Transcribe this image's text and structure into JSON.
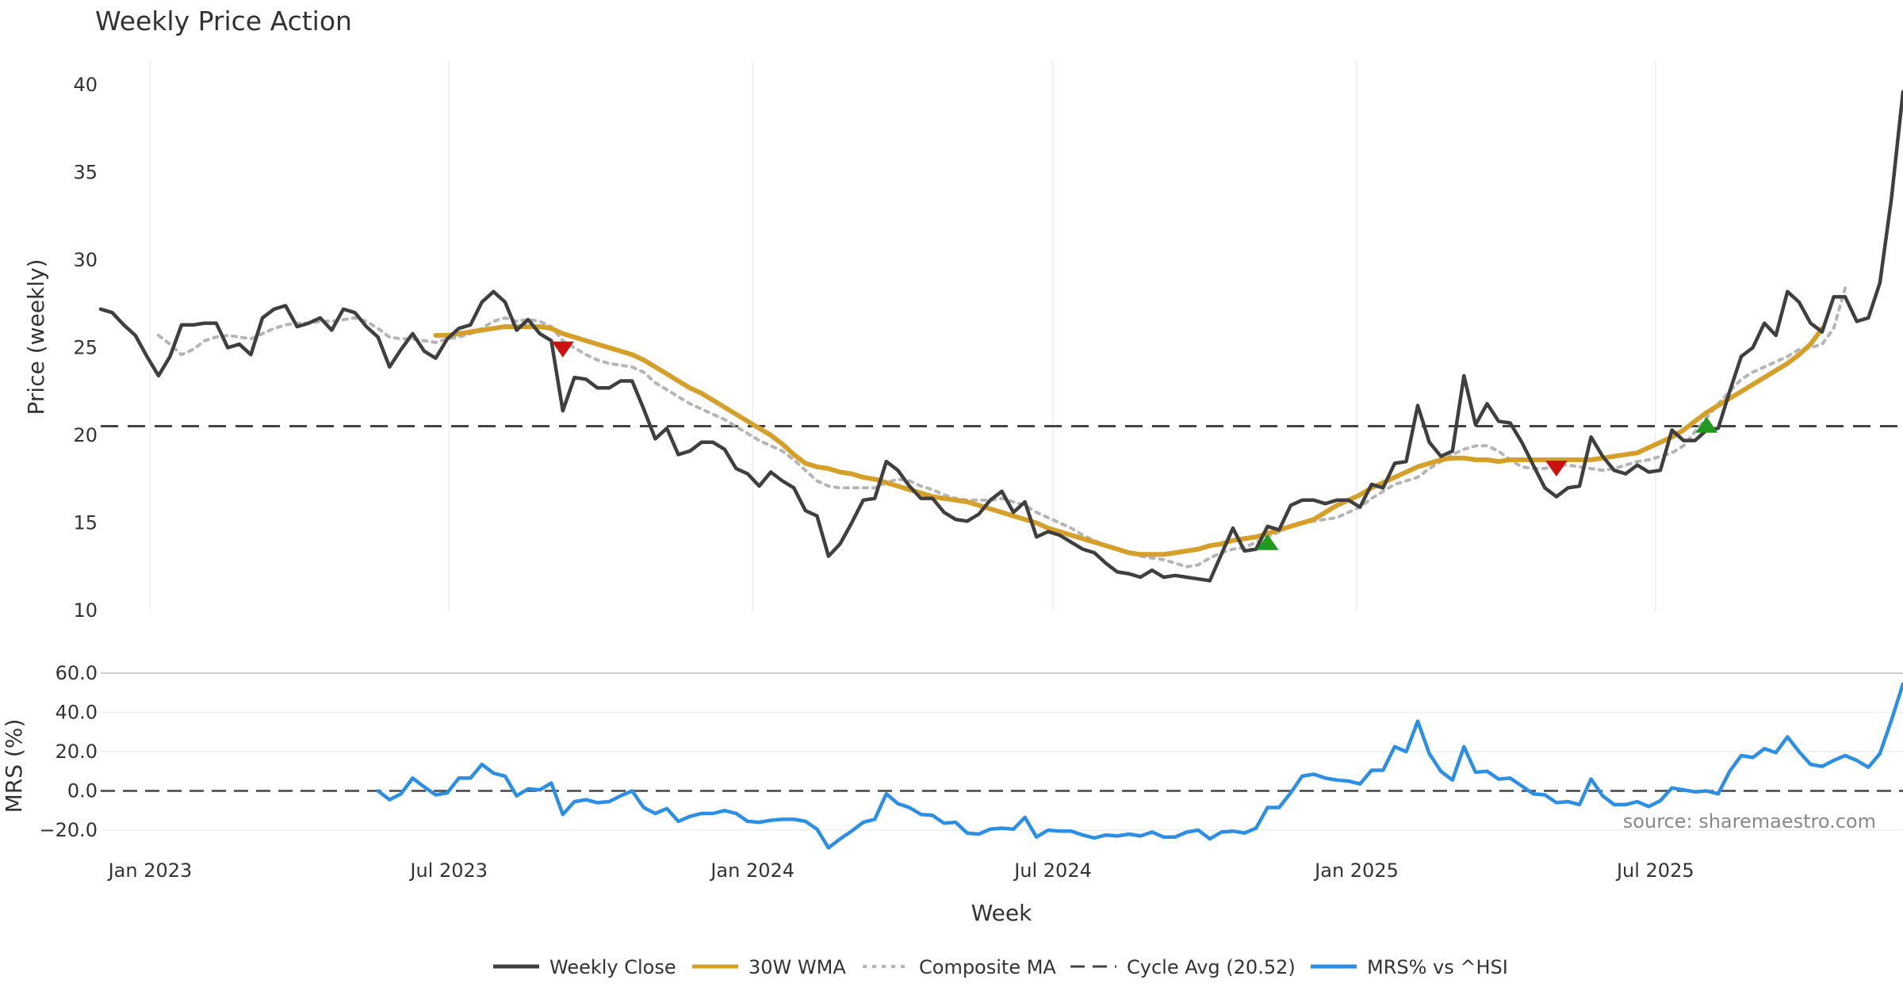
{
  "title": "Weekly Price Action",
  "source": "source: sharemaestro.com",
  "colors": {
    "close": "#3f3f3f",
    "wma": "#d4a02a",
    "composite": "#b5b5b5",
    "cycle": "#444444",
    "mrs": "#2c8fe3",
    "buy": "#1f9a1f",
    "sell": "#cc1111",
    "grid": "#ececec"
  },
  "chart_data": [
    {
      "type": "line",
      "name": "price-panel",
      "ylabel": "Price (weekly)",
      "ylim": [
        10,
        40
      ],
      "yticks": [
        "10",
        "15",
        "20",
        "25",
        "30",
        "35",
        "40"
      ],
      "x_start": "2022-12-02",
      "x_step_days": 7,
      "grid": true,
      "series": [
        {
          "name": "Weekly Close",
          "values": [
            27.2,
            27.0,
            26.3,
            25.7,
            24.5,
            23.4,
            24.5,
            26.3,
            26.3,
            26.4,
            26.4,
            25.0,
            25.2,
            24.6,
            26.7,
            27.2,
            27.4,
            26.2,
            26.4,
            26.7,
            26.0,
            27.2,
            27.0,
            26.2,
            25.6,
            23.9,
            24.9,
            25.8,
            24.8,
            24.4,
            25.5,
            26.1,
            26.3,
            27.6,
            28.2,
            27.6,
            26.0,
            26.6,
            25.8,
            25.4,
            21.4,
            23.3,
            23.2,
            22.7,
            22.7,
            23.1,
            23.1,
            21.5,
            19.8,
            20.4,
            18.9,
            19.1,
            19.6,
            19.6,
            19.2,
            18.1,
            17.8,
            17.1,
            17.9,
            17.4,
            17.0,
            15.7,
            15.4,
            13.1,
            13.8,
            15.0,
            16.3,
            16.4,
            18.5,
            18.0,
            17.1,
            16.4,
            16.4,
            15.6,
            15.2,
            15.1,
            15.5,
            16.3,
            16.8,
            15.6,
            16.2,
            14.2,
            14.5,
            14.3,
            13.9,
            13.5,
            13.3,
            12.7,
            12.2,
            12.1,
            11.9,
            12.3,
            11.9,
            12.0,
            11.9,
            11.8,
            11.7,
            13.2,
            14.7,
            13.4,
            13.5,
            14.8,
            14.6,
            16.0,
            16.3,
            16.3,
            16.1,
            16.3,
            16.3,
            15.9,
            17.2,
            17.0,
            18.4,
            18.5,
            21.7,
            19.6,
            18.8,
            19.1,
            23.4,
            20.6,
            21.8,
            20.8,
            20.7,
            19.6,
            18.3,
            17.0,
            16.5,
            17.0,
            17.1,
            19.9,
            18.8,
            18.0,
            17.8,
            18.3,
            17.9,
            18.0,
            20.3,
            19.7,
            19.7,
            20.3,
            20.4,
            22.5,
            24.5,
            25.0,
            26.4,
            25.7,
            28.2,
            27.6,
            26.4,
            25.9,
            27.9,
            27.9,
            26.5,
            26.7,
            28.7,
            33.5,
            39.6
          ]
        },
        {
          "name": "30W WMA",
          "values": [
            null,
            null,
            null,
            null,
            null,
            null,
            null,
            null,
            null,
            null,
            null,
            null,
            null,
            null,
            null,
            null,
            null,
            null,
            null,
            null,
            null,
            null,
            null,
            null,
            null,
            null,
            null,
            null,
            null,
            25.7,
            25.7,
            25.8,
            25.9,
            26.0,
            26.1,
            26.2,
            26.2,
            26.2,
            26.2,
            26.1,
            25.8,
            25.6,
            25.4,
            25.2,
            25.0,
            24.8,
            24.6,
            24.3,
            23.9,
            23.5,
            23.1,
            22.7,
            22.4,
            22.0,
            21.6,
            21.2,
            20.8,
            20.4,
            20.0,
            19.5,
            18.9,
            18.4,
            18.2,
            18.1,
            17.9,
            17.8,
            17.6,
            17.5,
            17.3,
            17.1,
            16.9,
            16.7,
            16.5,
            16.4,
            16.3,
            16.2,
            16.0,
            15.8,
            15.6,
            15.4,
            15.2,
            15.0,
            14.7,
            14.5,
            14.3,
            14.1,
            13.9,
            13.7,
            13.5,
            13.3,
            13.2,
            13.2,
            13.2,
            13.3,
            13.4,
            13.5,
            13.7,
            13.8,
            14.0,
            14.1,
            14.2,
            14.4,
            14.6,
            14.8,
            15.0,
            15.2,
            15.6,
            16.0,
            16.3,
            16.6,
            17.0,
            17.3,
            17.6,
            17.9,
            18.2,
            18.4,
            18.6,
            18.7,
            18.7,
            18.6,
            18.6,
            18.5,
            18.6,
            18.6,
            18.6,
            18.6,
            18.6,
            18.6,
            18.6,
            18.6,
            18.7,
            18.8,
            18.9,
            19.0,
            19.3,
            19.6,
            19.9,
            20.3,
            20.8,
            21.3,
            21.7,
            22.1,
            22.5,
            22.9,
            23.3,
            23.7,
            24.1,
            24.6,
            25.2,
            26.1
          ]
        },
        {
          "name": "Composite MA",
          "values": [
            null,
            null,
            null,
            null,
            null,
            25.7,
            25.2,
            24.6,
            24.9,
            25.4,
            25.6,
            25.7,
            25.6,
            25.5,
            25.8,
            26.1,
            26.3,
            26.4,
            26.4,
            26.5,
            26.5,
            26.6,
            26.7,
            26.5,
            26.1,
            25.6,
            25.5,
            25.5,
            25.4,
            25.3,
            25.5,
            25.6,
            25.8,
            26.1,
            26.5,
            26.7,
            26.5,
            26.6,
            26.5,
            26.2,
            25.4,
            25.0,
            24.6,
            24.3,
            24.1,
            24.0,
            23.9,
            23.6,
            23.0,
            22.6,
            22.2,
            21.8,
            21.5,
            21.2,
            20.9,
            20.5,
            20.1,
            19.7,
            19.4,
            19.1,
            18.6,
            18.0,
            17.4,
            17.1,
            17.0,
            17.0,
            17.0,
            17.0,
            17.3,
            17.5,
            17.4,
            17.1,
            16.9,
            16.6,
            16.4,
            16.3,
            16.3,
            16.3,
            16.4,
            16.2,
            16.0,
            15.6,
            15.3,
            15.0,
            14.7,
            14.3,
            14.0,
            13.7,
            13.5,
            13.3,
            13.1,
            13.0,
            12.9,
            12.7,
            12.5,
            12.6,
            13.0,
            13.3,
            13.5,
            13.6,
            13.9,
            14.2,
            14.5,
            14.8,
            15.0,
            15.1,
            15.2,
            15.3,
            15.6,
            15.9,
            16.4,
            16.8,
            17.2,
            17.4,
            17.6,
            18.1,
            18.5,
            18.9,
            19.2,
            19.4,
            19.4,
            19.1,
            18.6,
            18.2,
            18.1,
            18.1,
            18.3,
            18.3,
            18.2,
            18.1,
            18.0,
            18.1,
            18.3,
            18.5,
            18.6,
            18.8,
            19.0,
            19.4,
            20.2,
            21.0,
            21.8,
            22.5,
            23.2,
            23.6,
            23.9,
            24.2,
            24.5,
            24.9,
            25.0,
            25.2,
            26.1,
            28.4
          ]
        }
      ],
      "reference_line": {
        "name": "Cycle Avg (20.52)",
        "value": 20.52
      },
      "signals": [
        {
          "type": "sell",
          "x_index": 40,
          "y": 24.9
        },
        {
          "type": "buy",
          "x_index": 101,
          "y": 13.9
        },
        {
          "type": "sell",
          "x_index": 126,
          "y": 18.1
        },
        {
          "type": "buy",
          "x_index": 139,
          "y": 20.6
        }
      ]
    },
    {
      "type": "line",
      "name": "mrs-panel",
      "ylabel": "MRS (%)",
      "ylim": [
        -30,
        60
      ],
      "yticks": [
        "−20.0",
        "0.0",
        "20.0",
        "40.0",
        "60.0"
      ],
      "x_start": "2022-12-02",
      "x_step_days": 7,
      "xlabel": "Week",
      "xticks": [
        {
          "label": "Jan 2023",
          "date": "2023-01-01"
        },
        {
          "label": "Jul 2023",
          "date": "2023-07-01"
        },
        {
          "label": "Jan 2024",
          "date": "2024-01-01"
        },
        {
          "label": "Jul 2024",
          "date": "2024-07-01"
        },
        {
          "label": "Jan 2025",
          "date": "2025-01-01"
        },
        {
          "label": "Jul 2025",
          "date": "2025-07-01"
        }
      ],
      "series": [
        {
          "name": "MRS% vs ^HSI",
          "values": [
            null,
            null,
            null,
            null,
            null,
            null,
            null,
            null,
            null,
            null,
            null,
            null,
            null,
            null,
            null,
            null,
            null,
            null,
            null,
            null,
            null,
            null,
            null,
            null,
            0,
            -4.5,
            -1.5,
            6.5,
            2.0,
            -2.0,
            -1.0,
            6.5,
            6.5,
            13.5,
            9.0,
            7.5,
            -2.5,
            1.0,
            0.5,
            4.0,
            -12.0,
            -5.5,
            -4.5,
            -6.0,
            -5.5,
            -2.5,
            0.0,
            -8.5,
            -11.5,
            -9.0,
            -15.5,
            -13.0,
            -11.5,
            -11.5,
            -10.0,
            -11.5,
            -15.5,
            -16.0,
            -15.0,
            -14.5,
            -14.5,
            -15.5,
            -19.5,
            -29.0,
            -24.5,
            -20.5,
            -16.0,
            -14.5,
            -1.5,
            -6.5,
            -8.5,
            -12.0,
            -12.5,
            -16.5,
            -16.0,
            -21.5,
            -22.0,
            -19.5,
            -19.0,
            -19.5,
            -13.5,
            -23.5,
            -20.0,
            -20.5,
            -20.5,
            -22.5,
            -24.0,
            -22.5,
            -23.0,
            -22.0,
            -23.0,
            -21.0,
            -23.5,
            -23.5,
            -21.0,
            -20.0,
            -24.5,
            -21.0,
            -20.5,
            -21.5,
            -19.0,
            -8.5,
            -8.5,
            -1.0,
            7.5,
            8.5,
            6.5,
            5.5,
            5.0,
            3.5,
            10.5,
            10.5,
            22.5,
            20.0,
            35.5,
            19.0,
            10.0,
            5.5,
            22.5,
            9.5,
            10.0,
            6.0,
            6.5,
            2.5,
            -1.5,
            -2.0,
            -6.0,
            -5.5,
            -7.0,
            6.0,
            -2.5,
            -7.0,
            -7.0,
            -5.5,
            -8.0,
            -5.0,
            1.5,
            0.5,
            -0.5,
            0.0,
            -1.5,
            10.0,
            18.0,
            17.0,
            21.5,
            19.5,
            27.5,
            20.0,
            13.5,
            12.5,
            15.5,
            18.0,
            15.5,
            12.0,
            19.0,
            36.0,
            54.5
          ]
        }
      ],
      "reference_line": {
        "value": 0
      }
    }
  ],
  "legend": [
    {
      "label": "Weekly Close",
      "style": "solid",
      "color": "#3f3f3f"
    },
    {
      "label": "30W WMA",
      "style": "solid",
      "color": "#d4a02a"
    },
    {
      "label": "Composite MA",
      "style": "dotted",
      "color": "#b5b5b5"
    },
    {
      "label": "Cycle Avg (20.52)",
      "style": "dashed",
      "color": "#444444"
    },
    {
      "label": "MRS% vs ^HSI",
      "style": "solid",
      "color": "#2c8fe3"
    }
  ]
}
